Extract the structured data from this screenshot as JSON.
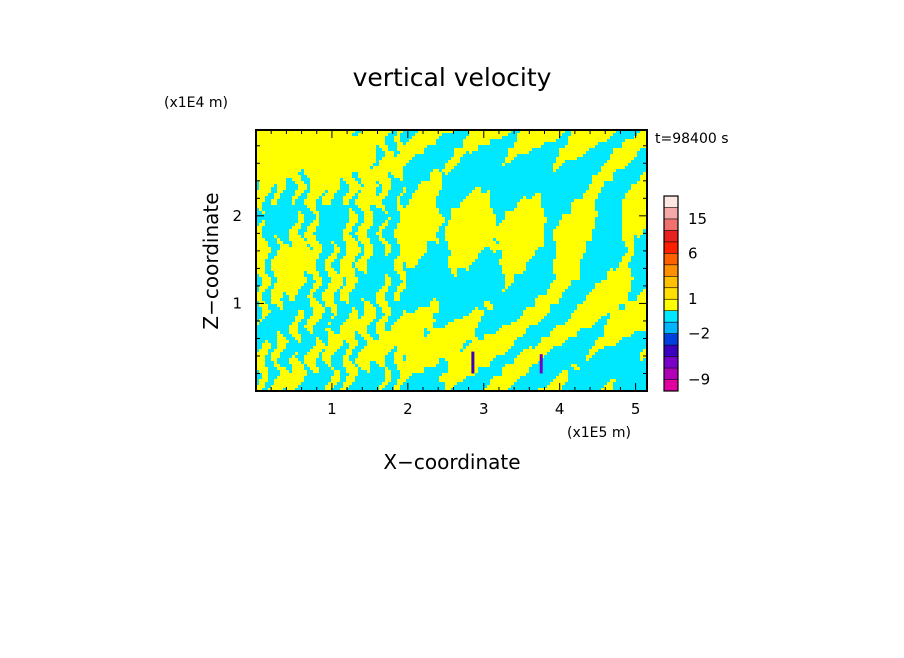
{
  "chart_data": {
    "type": "heatmap",
    "title": "vertical velocity",
    "xlabel": "X−coordinate",
    "ylabel": "Z−coordinate",
    "x_unit": "(x1E5 m)",
    "y_unit": "(x1E4 m)",
    "time_label": "t=98400 s",
    "xlim": [
      0.0,
      5.15
    ],
    "ylim": [
      0.0,
      2.98
    ],
    "x_ticks": [
      {
        "value": 1,
        "label": "1"
      },
      {
        "value": 2,
        "label": "2"
      },
      {
        "value": 3,
        "label": "3"
      },
      {
        "value": 4,
        "label": "4"
      },
      {
        "value": 5,
        "label": "5"
      }
    ],
    "y_ticks": [
      {
        "value": 1,
        "label": "1"
      },
      {
        "value": 2,
        "label": "2"
      }
    ],
    "colorbar": {
      "levels": [
        -12,
        -9,
        -6,
        -4,
        -3,
        -2,
        -1,
        0,
        1,
        2,
        3,
        4,
        6,
        9,
        12,
        15,
        18,
        24
      ],
      "colors": [
        "#e000a0",
        "#b000b8",
        "#7800c8",
        "#3c00c0",
        "#0040e0",
        "#00b4ff",
        "#00e8ff",
        "#ffff00",
        "#ffe000",
        "#ffc000",
        "#ff9000",
        "#ff6000",
        "#ff2000",
        "#e82020",
        "#f07070",
        "#f4a8a8",
        "#fce8e0"
      ],
      "tick_labels": [
        {
          "value": 15,
          "label": "15"
        },
        {
          "value": 6,
          "label": "6"
        },
        {
          "value": 1,
          "label": "1"
        },
        {
          "value": -2,
          "label": "−2"
        },
        {
          "value": -9,
          "label": "−9"
        }
      ]
    },
    "field": {
      "dominant_colors": {
        "positive": "#ffff00",
        "negative": "#00e8ff"
      },
      "notes": [
        "alternating narrow updraft/downdraft bands tilted toward lower-left",
        "strong negative spikes near x=2.85 and x=3.75 at low levels"
      ]
    }
  }
}
